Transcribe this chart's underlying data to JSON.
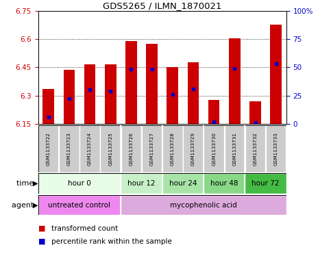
{
  "title": "GDS5265 / ILMN_1870021",
  "samples": [
    "GSM1133722",
    "GSM1133723",
    "GSM1133724",
    "GSM1133725",
    "GSM1133726",
    "GSM1133727",
    "GSM1133728",
    "GSM1133729",
    "GSM1133730",
    "GSM1133731",
    "GSM1133732",
    "GSM1133733"
  ],
  "bar_tops": [
    6.335,
    6.435,
    6.465,
    6.465,
    6.59,
    6.575,
    6.45,
    6.475,
    6.275,
    6.605,
    6.27,
    6.675
  ],
  "bar_bottom": 6.15,
  "percentile_values": [
    6.185,
    6.285,
    6.33,
    6.325,
    6.44,
    6.44,
    6.305,
    6.335,
    6.16,
    6.445,
    6.155,
    6.47
  ],
  "ylim": [
    6.15,
    6.75
  ],
  "yticks": [
    6.15,
    6.3,
    6.45,
    6.6,
    6.75
  ],
  "ytick_labels": [
    "6.15",
    "6.3",
    "6.45",
    "6.6",
    "6.75"
  ],
  "y2lim": [
    0,
    100
  ],
  "y2ticks": [
    0,
    25,
    50,
    75,
    100
  ],
  "y2tick_labels": [
    "0",
    "25",
    "50",
    "75",
    "100%"
  ],
  "bar_color": "#cc0000",
  "percentile_color": "#0000cc",
  "background_color": "#ffffff",
  "grid_color": "#000000",
  "group_sep_ends": [
    3.5,
    5.5,
    7.5,
    9.5
  ],
  "time_groups": [
    {
      "label": "hour 0",
      "start": 0,
      "end": 3,
      "color": "#e8fce8"
    },
    {
      "label": "hour 12",
      "start": 4,
      "end": 5,
      "color": "#c8f0c8"
    },
    {
      "label": "hour 24",
      "start": 6,
      "end": 7,
      "color": "#a8e4a8"
    },
    {
      "label": "hour 48",
      "start": 8,
      "end": 9,
      "color": "#88d888"
    },
    {
      "label": "hour 72",
      "start": 10,
      "end": 11,
      "color": "#44bb44"
    }
  ],
  "agent_groups": [
    {
      "label": "untreated control",
      "start": 0,
      "end": 3,
      "color": "#ee88ee"
    },
    {
      "label": "mycophenolic acid",
      "start": 4,
      "end": 11,
      "color": "#ddaadd"
    }
  ],
  "legend_items": [
    {
      "label": "transformed count",
      "color": "#cc0000"
    },
    {
      "label": "percentile rank within the sample",
      "color": "#0000cc"
    }
  ],
  "time_label": "time",
  "agent_label": "agent",
  "sample_box_color": "#cccccc",
  "sample_sep_color": "#888888"
}
